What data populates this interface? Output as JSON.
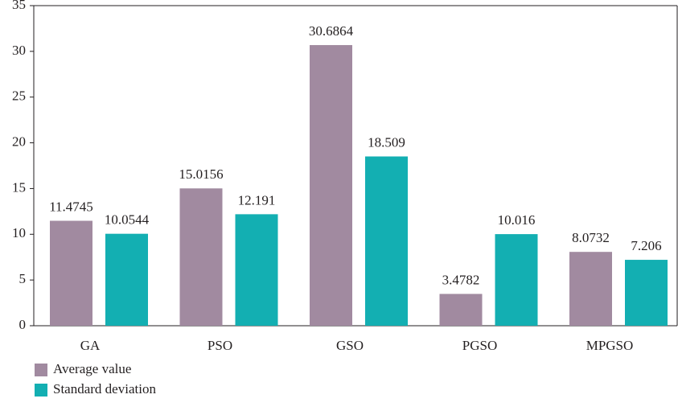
{
  "chart_data": {
    "type": "bar",
    "categories": [
      "GA",
      "PSO",
      "GSO",
      "PGSO",
      "MPGSO"
    ],
    "series": [
      {
        "name": "Average value",
        "color": "#a18aa0",
        "values": [
          11.4745,
          15.0156,
          30.6864,
          3.4782,
          8.0732
        ]
      },
      {
        "name": "Standard deviation",
        "color": "#13afb2",
        "values": [
          10.0544,
          12.191,
          18.509,
          10.016,
          7.206
        ]
      }
    ],
    "ylim": [
      0,
      35
    ],
    "yticks": [
      0,
      5,
      10,
      15,
      20,
      25,
      30,
      35
    ],
    "legend": "bottom-left"
  }
}
